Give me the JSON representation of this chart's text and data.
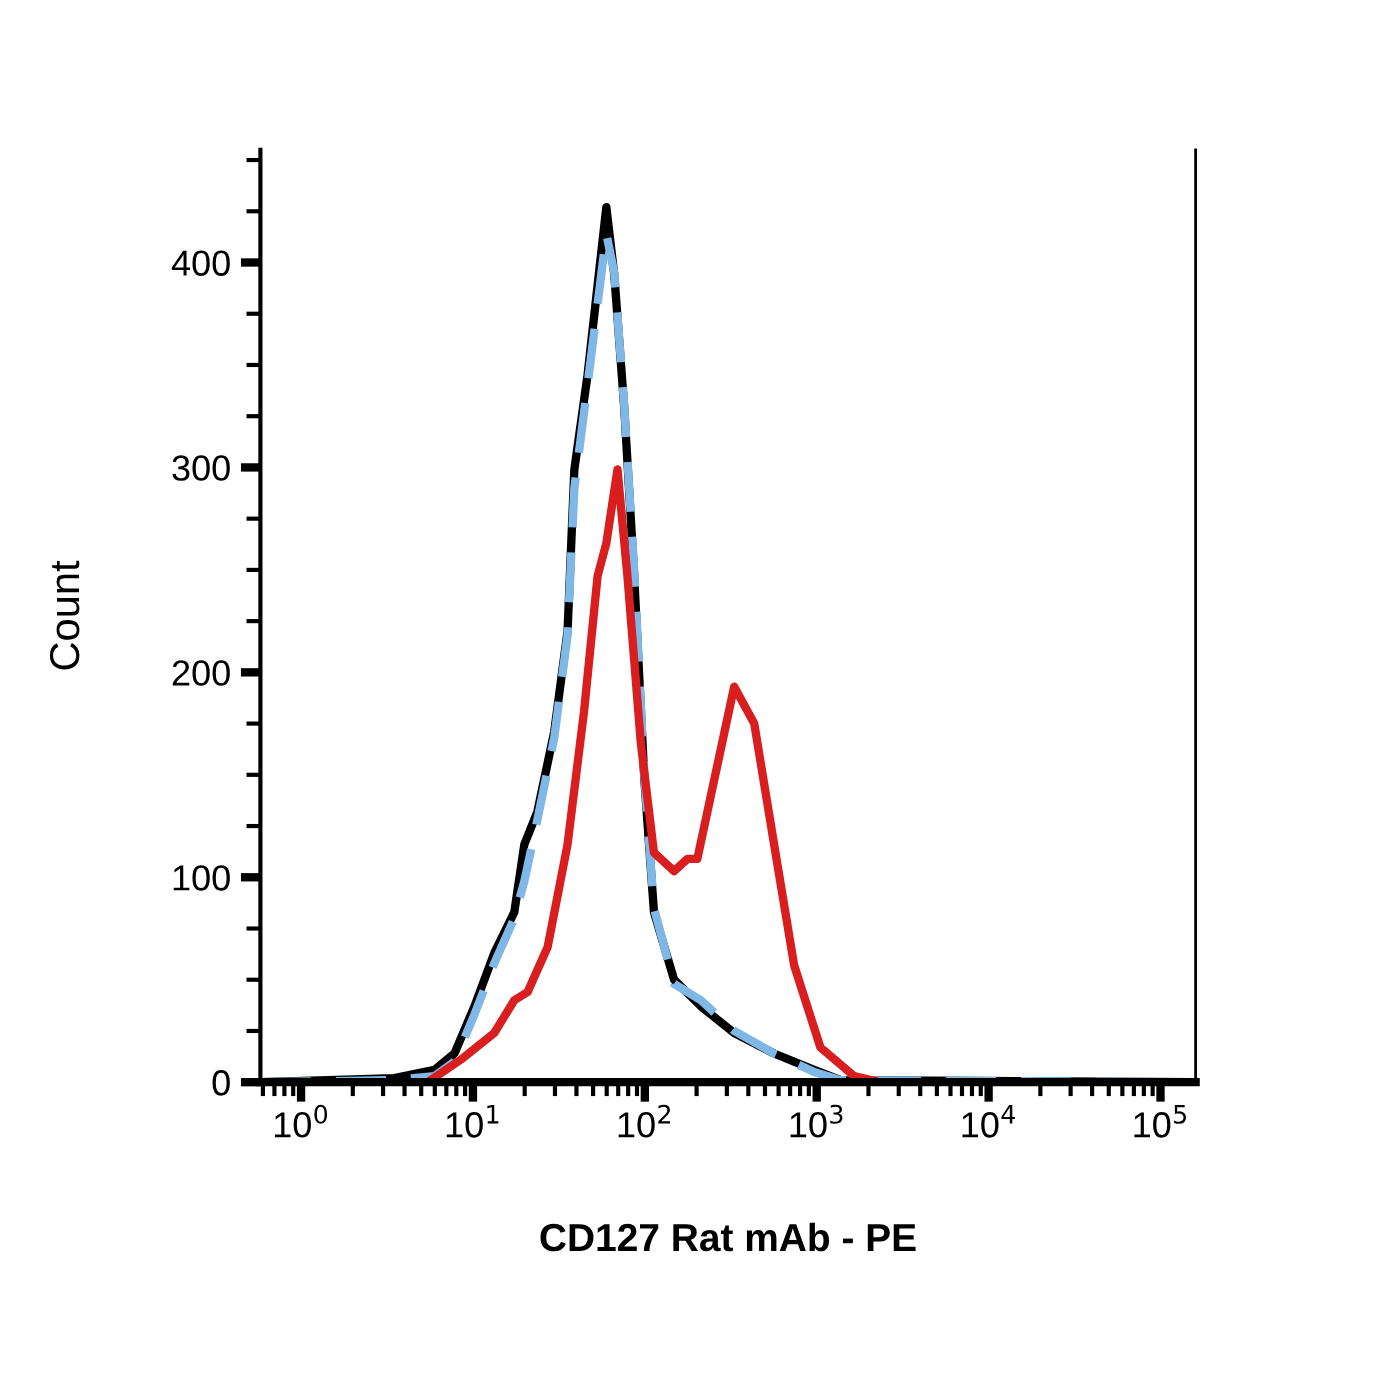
{
  "chart_data": {
    "type": "line",
    "xlabel": "CD127 Rat mAb - PE",
    "ylabel": "Count",
    "log": "x",
    "grid": false,
    "legend": false,
    "xlim": [
      0.58,
      160000
    ],
    "ylim": [
      0,
      455
    ],
    "xticks": [
      {
        "value": 1,
        "label": "10$^{0}$"
      },
      {
        "value": 10,
        "label": "10$^{1}$"
      },
      {
        "value": 100,
        "label": "10$^{2}$"
      },
      {
        "value": 1000,
        "label": "10$^{3}$"
      },
      {
        "value": 10000,
        "label": "10$^{4}$"
      },
      {
        "value": 100000,
        "label": "10$^{5}$"
      }
    ],
    "yticks": [
      0,
      100,
      200,
      300,
      400
    ],
    "series": [
      {
        "color": "#000000",
        "line_style": "solid",
        "x": [
          0.585,
          3.49,
          5.97,
          7.8,
          10.2,
          13.3,
          17.4,
          19.9,
          23.7,
          29.7,
          35.5,
          38.9,
          46.4,
          59.7,
          66.4,
          75.9,
          86.7,
          99.3,
          113,
          148,
          212,
          331,
          565,
          966,
          1380,
          156000
        ],
        "values": [
          0,
          2,
          6,
          14,
          37,
          63,
          83,
          116,
          132,
          171,
          220,
          299,
          345,
          427,
          394,
          329,
          247,
          148,
          83,
          50,
          37,
          24,
          14,
          6,
          1,
          0
        ]
      },
      {
        "color": "#7fb8e6",
        "line_style": "dashed",
        "x": [
          0.585,
          3.49,
          5.97,
          7.8,
          10.2,
          13.3,
          17.4,
          19.9,
          23.7,
          29.7,
          35.5,
          38.9,
          46.4,
          59.7,
          66.4,
          75.9,
          86.7,
          99.3,
          113,
          148,
          212,
          331,
          565,
          966,
          1380,
          156000
        ],
        "values": [
          0,
          1,
          3,
          10,
          33,
          58,
          80,
          98,
          128,
          168,
          218,
          290,
          340,
          414,
          395,
          330,
          250,
          150,
          85,
          48,
          40,
          25,
          14,
          5,
          1,
          0
        ]
      },
      {
        "color": "#d81e1e",
        "line_style": "solid",
        "x": [
          0.585,
          5.45,
          8.5,
          13.3,
          17.4,
          20.8,
          27.2,
          35.5,
          44.3,
          53.1,
          59.7,
          69.3,
          79.2,
          94.9,
          113,
          148,
          177,
          202,
          254,
          331,
          433,
          565,
          739,
          1050,
          1650,
          2350,
          156000
        ],
        "values": [
          0,
          0,
          11,
          24,
          40,
          44,
          66,
          116,
          181,
          247,
          263,
          299,
          247,
          165,
          112,
          103,
          109,
          109,
          148,
          193,
          175,
          116,
          57,
          17,
          3,
          0,
          0
        ]
      }
    ]
  }
}
